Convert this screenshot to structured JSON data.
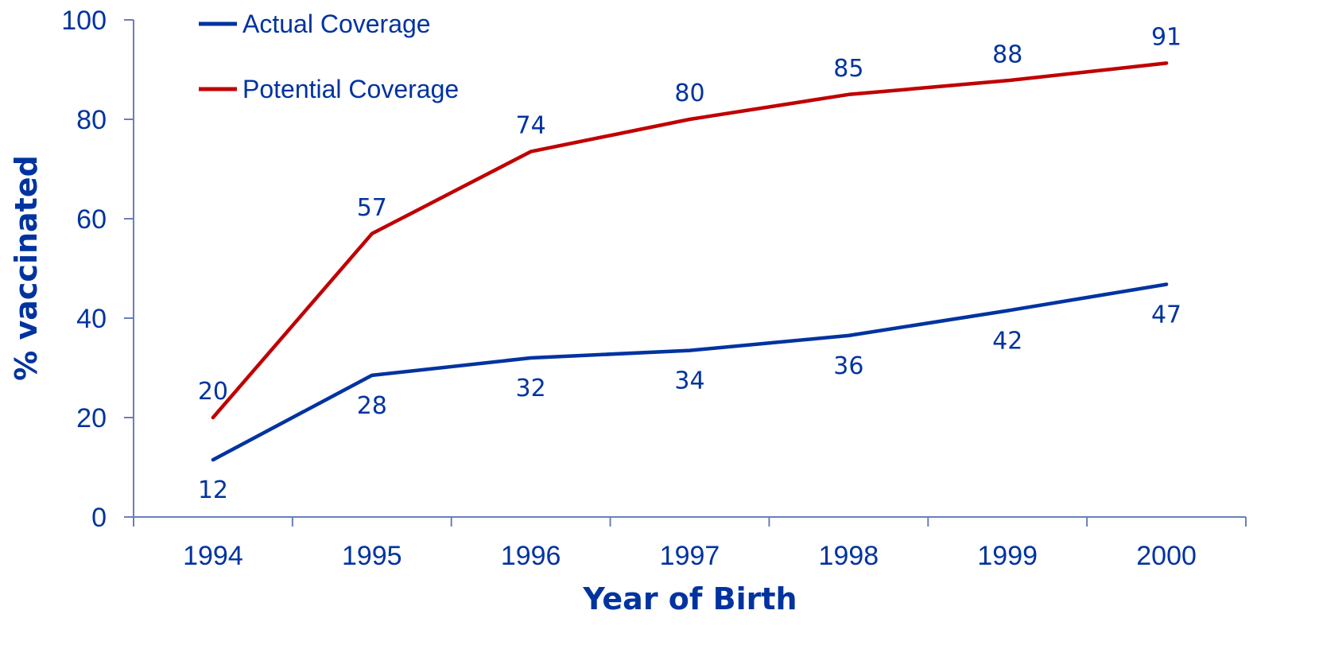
{
  "chart_data": {
    "type": "line",
    "title": "",
    "xlabel": "Year of Birth",
    "ylabel": "% vaccinated",
    "categories": [
      "1994",
      "1995",
      "1996",
      "1997",
      "1998",
      "1999",
      "2000"
    ],
    "ylim": [
      0,
      100
    ],
    "yticks": [
      "0",
      "20",
      "40",
      "60",
      "80",
      "100"
    ],
    "grid": false,
    "legend_position": "top-left",
    "series": [
      {
        "name": "Actual Coverage",
        "color": "#0033A0",
        "values": [
          11.5,
          28.5,
          32,
          33.5,
          36.5,
          41.5,
          46.8
        ],
        "labels": [
          "12",
          "28",
          "32",
          "34",
          "36",
          "42",
          "47"
        ]
      },
      {
        "name": "Potential Coverage",
        "color": "#C00000",
        "values": [
          20,
          57,
          73.5,
          80,
          85,
          87.8,
          91.3
        ],
        "labels": [
          "20",
          "57",
          "74",
          "80",
          "85",
          "88",
          "91"
        ]
      }
    ],
    "text_color": "#0033A0",
    "axis_color": "#6A7FB8"
  }
}
